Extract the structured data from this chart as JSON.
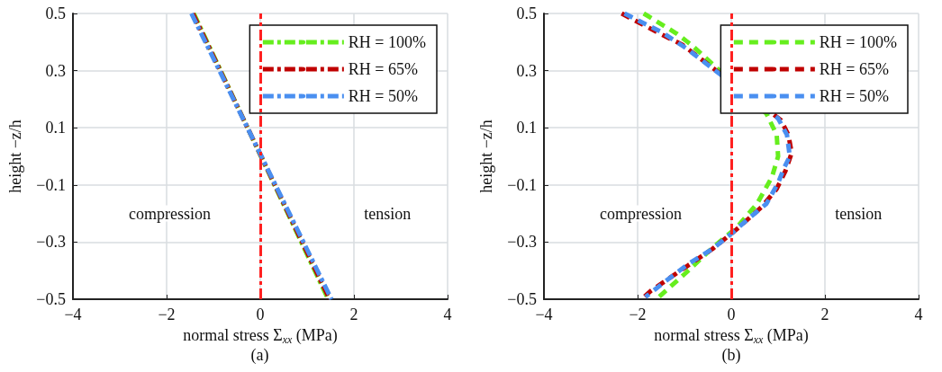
{
  "chart_data": [
    {
      "type": "line",
      "xlabel": "normal stress Σ$_{xx}$ (MPa)",
      "ylabel": "height −z/h",
      "xlim": [
        -4,
        4
      ],
      "xticks": [
        -4,
        -2,
        0,
        2,
        4
      ],
      "ylim": [
        -0.5,
        0.5
      ],
      "yticks": [
        -0.5,
        -0.3,
        -0.1,
        0.1,
        0.3,
        0.5
      ],
      "grid": true,
      "legend": "top right",
      "line_style": "dashdot",
      "marker": "none",
      "series": [
        {
          "name": "RH = 100%",
          "color": "#66ee1e",
          "x": [
            -1.42,
            1.45
          ],
          "values": [
            0.5,
            -0.5
          ]
        },
        {
          "name": "RH = 65%",
          "color": "#c00000",
          "x": [
            -1.44,
            1.48
          ],
          "values": [
            0.5,
            -0.5
          ]
        },
        {
          "name": "RH = 50%",
          "color": "#4a8ff0",
          "x": [
            -1.47,
            1.52
          ],
          "values": [
            0.5,
            -0.5
          ]
        }
      ],
      "ref_lines": [
        {
          "axis": "x",
          "value": 0,
          "color": "#ff2020",
          "line_style": "dashdot"
        }
      ],
      "annotations": [
        "compression",
        "tension",
        "(a)"
      ]
    },
    {
      "type": "line",
      "xlabel": "normal stress Σ$_{xx}$ (MPa)",
      "ylabel": "height −z/h",
      "xlim": [
        -4,
        4
      ],
      "xticks": [
        -4,
        -2,
        0,
        2,
        4
      ],
      "ylim": [
        -0.5,
        0.5
      ],
      "yticks": [
        -0.5,
        -0.3,
        -0.1,
        0.1,
        0.3,
        0.5
      ],
      "grid": true,
      "legend": "top right",
      "line_style": "dashed",
      "marker": "none",
      "series": [
        {
          "name": "RH = 100%",
          "color": "#66ee1e",
          "x": [
            -1.87,
            -1.17,
            -0.85,
            0.75,
            0.97,
            1.0,
            0.87,
            0.55,
            0.11,
            -0.4,
            -0.97,
            -1.6
          ],
          "values": [
            0.5,
            0.43,
            0.39,
            0.15,
            0.075,
            0.0,
            -0.072,
            -0.166,
            -0.25,
            -0.32,
            -0.408,
            -0.5
          ]
        },
        {
          "name": "RH = 65%",
          "color": "#c00000",
          "x": [
            -2.34,
            -1.61,
            -1.04,
            1.06,
            1.22,
            1.29,
            1.16,
            0.97,
            0.65,
            0.11,
            -0.4,
            -0.97,
            -1.71,
            -1.85
          ],
          "values": [
            0.5,
            0.437,
            0.39,
            0.127,
            0.075,
            0.012,
            -0.05,
            -0.114,
            -0.177,
            -0.256,
            -0.324,
            -0.387,
            -0.47,
            -0.49
          ]
        },
        {
          "name": "RH = 50%",
          "color": "#4a8ff0",
          "x": [
            -2.28,
            -1.48,
            -0.97,
            1.0,
            1.19,
            1.25,
            1.13,
            1.0,
            0.75,
            0.36,
            0.0,
            -0.4,
            -0.91,
            -1.42,
            -1.83
          ],
          "values": [
            0.5,
            0.434,
            0.379,
            0.133,
            0.075,
            0.0,
            -0.04,
            -0.093,
            -0.166,
            -0.219,
            -0.271,
            -0.324,
            -0.376,
            -0.439,
            -0.492
          ]
        }
      ],
      "ref_lines": [
        {
          "axis": "x",
          "value": 0,
          "color": "#ff2020",
          "line_style": "dashdot"
        }
      ],
      "annotations": [
        "compression",
        "tension",
        "(b)"
      ]
    }
  ]
}
